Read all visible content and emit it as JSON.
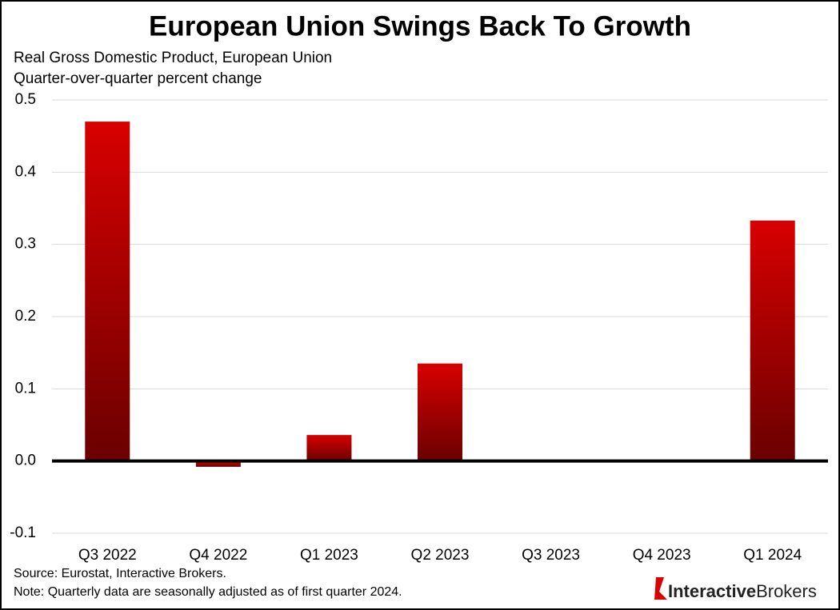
{
  "chart_data": {
    "type": "bar",
    "title": "European Union Swings Back To Growth",
    "subtitle": "Real Gross Domestic Product, European Union",
    "subtitle2": "Quarter-over-quarter percent change",
    "categories": [
      "Q3 2022",
      "Q4 2022",
      "Q1 2023",
      "Q2 2023",
      "Q3 2023",
      "Q4 2023",
      "Q1 2024"
    ],
    "values": [
      0.47,
      -0.008,
      0.036,
      0.135,
      0,
      0,
      0.333
    ],
    "color": "#d80000",
    "ylim": [
      -0.1,
      0.5
    ],
    "yticks": [
      -0.1,
      {
        "value": 0,
        "label": "0.0"
      },
      0.1,
      0.2,
      0.3,
      0.4,
      0.5
    ],
    "grid": true,
    "source": "Source: Eurostat, Interactive Brokers.",
    "note": "Note: Quarterly data are seasonally adjusted as of first quarter 2024."
  },
  "brand": {
    "first": "Interactive",
    "second": "Brokers"
  }
}
